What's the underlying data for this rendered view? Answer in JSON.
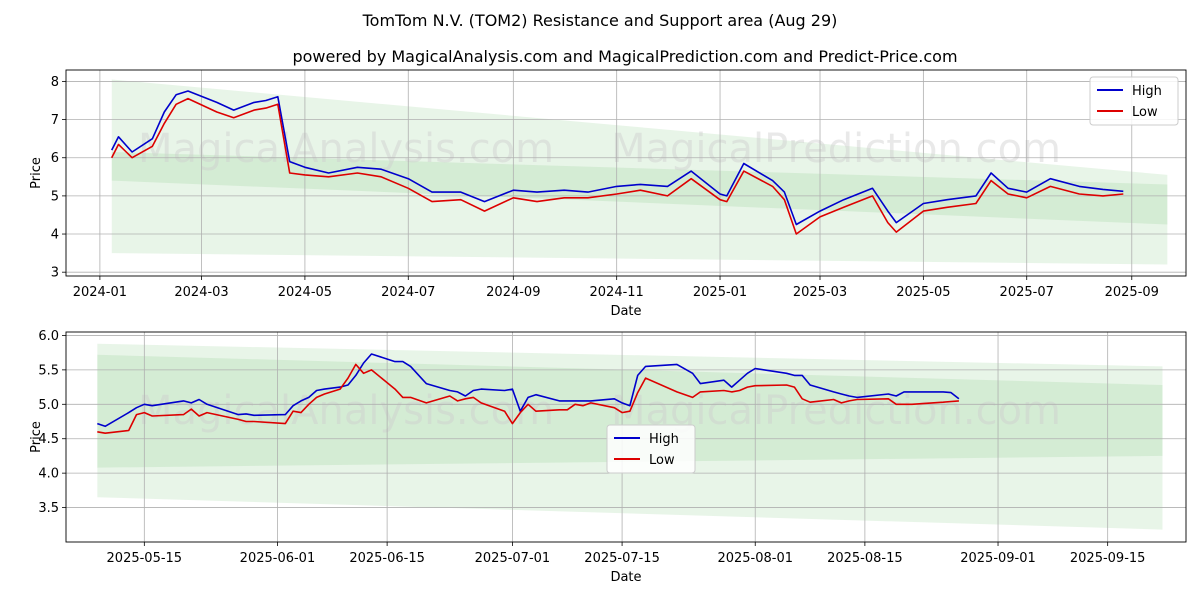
{
  "title": "TomTom N.V. (TOM2) Resistance and Support area (Aug 29)",
  "subtitle": "powered by MagicalAnalysis.com and MagicalPrediction.com and Predict-Price.com",
  "watermarks": [
    "MagicalAnalysis.com",
    "MagicalPrediction.com"
  ],
  "colors": {
    "high": "#0000cc",
    "low": "#dd0000",
    "band": "#6fbf6f",
    "grid": "#b0b0b0"
  },
  "chart_data": [
    {
      "type": "line",
      "xlabel": "Date",
      "ylabel": "Price",
      "x_range": [
        "2023-12-12",
        "2025-10-03"
      ],
      "ylim": [
        2.9,
        8.3
      ],
      "x_ticks": [
        "2024-01",
        "2024-03",
        "2024-05",
        "2024-07",
        "2024-09",
        "2024-11",
        "2025-01",
        "2025-03",
        "2025-05",
        "2025-07",
        "2025-09"
      ],
      "y_ticks": [
        3,
        4,
        5,
        6,
        7,
        8
      ],
      "grid": true,
      "legend_position": "top-right",
      "bands": [
        {
          "x": [
            "2024-01-08",
            "2025-09-22"
          ],
          "upper": [
            8.05,
            5.55
          ],
          "lower": [
            3.5,
            3.2
          ]
        },
        {
          "x": [
            "2024-01-08",
            "2025-09-22"
          ],
          "upper": [
            6.15,
            5.3
          ],
          "lower": [
            5.4,
            4.25
          ]
        }
      ],
      "series": [
        {
          "name": "High",
          "x": [
            "2024-01-08",
            "2024-01-12",
            "2024-01-20",
            "2024-02-01",
            "2024-02-08",
            "2024-02-15",
            "2024-02-22",
            "2024-03-10",
            "2024-03-20",
            "2024-04-01",
            "2024-04-08",
            "2024-04-15",
            "2024-04-22",
            "2024-05-01",
            "2024-05-15",
            "2024-06-01",
            "2024-06-15",
            "2024-07-01",
            "2024-07-15",
            "2024-08-01",
            "2024-08-15",
            "2024-09-01",
            "2024-09-15",
            "2024-10-01",
            "2024-10-15",
            "2024-11-01",
            "2024-11-15",
            "2024-12-01",
            "2024-12-15",
            "2025-01-01",
            "2025-01-05",
            "2025-01-15",
            "2025-02-01",
            "2025-02-08",
            "2025-02-15",
            "2025-03-01",
            "2025-03-15",
            "2025-04-01",
            "2025-04-10",
            "2025-04-15",
            "2025-05-01",
            "2025-05-15",
            "2025-06-01",
            "2025-06-10",
            "2025-06-20",
            "2025-07-01",
            "2025-07-15",
            "2025-08-01",
            "2025-08-15",
            "2025-08-27"
          ],
          "values": [
            6.2,
            6.55,
            6.15,
            6.5,
            7.2,
            7.65,
            7.75,
            7.45,
            7.25,
            7.45,
            7.5,
            7.6,
            5.9,
            5.75,
            5.6,
            5.75,
            5.7,
            5.45,
            5.1,
            5.1,
            4.85,
            5.15,
            5.1,
            5.15,
            5.1,
            5.25,
            5.3,
            5.25,
            5.65,
            5.05,
            5.0,
            5.85,
            5.4,
            5.1,
            4.25,
            4.6,
            4.9,
            5.2,
            4.6,
            4.3,
            4.8,
            4.9,
            5.0,
            5.6,
            5.2,
            5.1,
            5.45,
            5.25,
            5.17,
            5.12
          ]
        },
        {
          "name": "Low",
          "x": [
            "2024-01-08",
            "2024-01-12",
            "2024-01-20",
            "2024-02-01",
            "2024-02-08",
            "2024-02-15",
            "2024-02-22",
            "2024-03-10",
            "2024-03-20",
            "2024-04-01",
            "2024-04-08",
            "2024-04-15",
            "2024-04-22",
            "2024-05-01",
            "2024-05-15",
            "2024-06-01",
            "2024-06-15",
            "2024-07-01",
            "2024-07-15",
            "2024-08-01",
            "2024-08-15",
            "2024-09-01",
            "2024-09-15",
            "2024-10-01",
            "2024-10-15",
            "2024-11-01",
            "2024-11-15",
            "2024-12-01",
            "2024-12-15",
            "2025-01-01",
            "2025-01-05",
            "2025-01-15",
            "2025-02-01",
            "2025-02-08",
            "2025-02-15",
            "2025-03-01",
            "2025-03-15",
            "2025-04-01",
            "2025-04-10",
            "2025-04-15",
            "2025-05-01",
            "2025-05-15",
            "2025-06-01",
            "2025-06-10",
            "2025-06-20",
            "2025-07-01",
            "2025-07-15",
            "2025-08-01",
            "2025-08-15",
            "2025-08-27"
          ],
          "values": [
            6.0,
            6.35,
            6.0,
            6.3,
            6.9,
            7.4,
            7.55,
            7.2,
            7.05,
            7.25,
            7.3,
            7.4,
            5.6,
            5.55,
            5.5,
            5.6,
            5.5,
            5.2,
            4.85,
            4.9,
            4.6,
            4.95,
            4.85,
            4.95,
            4.95,
            5.05,
            5.15,
            5.0,
            5.45,
            4.9,
            4.85,
            5.65,
            5.25,
            4.9,
            4.0,
            4.45,
            4.7,
            5.0,
            4.3,
            4.05,
            4.6,
            4.7,
            4.8,
            5.4,
            5.05,
            4.95,
            5.25,
            5.05,
            5.0,
            5.05
          ]
        }
      ]
    },
    {
      "type": "line",
      "xlabel": "Date",
      "ylabel": "Price",
      "x_range": [
        "2025-05-05",
        "2025-09-25"
      ],
      "ylim": [
        3.0,
        6.05
      ],
      "x_ticks": [
        "2025-05-15",
        "2025-06-01",
        "2025-06-15",
        "2025-07-01",
        "2025-07-15",
        "2025-08-01",
        "2025-08-15",
        "2025-09-01",
        "2025-09-15"
      ],
      "y_ticks": [
        3.5,
        4.0,
        4.5,
        5.0,
        5.5,
        6.0
      ],
      "grid": true,
      "legend_position": "center",
      "bands": [
        {
          "x": [
            "2025-05-09",
            "2025-09-22"
          ],
          "upper": [
            5.88,
            5.55
          ],
          "lower": [
            3.65,
            3.18
          ]
        },
        {
          "x": [
            "2025-05-09",
            "2025-09-22"
          ],
          "upper": [
            5.72,
            5.28
          ],
          "lower": [
            4.08,
            4.25
          ]
        }
      ],
      "series": [
        {
          "name": "High",
          "x": [
            "2025-05-09",
            "2025-05-10",
            "2025-05-13",
            "2025-05-14",
            "2025-05-15",
            "2025-05-16",
            "2025-05-20",
            "2025-05-21",
            "2025-05-22",
            "2025-05-23",
            "2025-05-27",
            "2025-05-28",
            "2025-05-29",
            "2025-06-02",
            "2025-06-03",
            "2025-06-04",
            "2025-06-05",
            "2025-06-06",
            "2025-06-07",
            "2025-06-09",
            "2025-06-10",
            "2025-06-11",
            "2025-06-12",
            "2025-06-13",
            "2025-06-16",
            "2025-06-17",
            "2025-06-18",
            "2025-06-20",
            "2025-06-23",
            "2025-06-24",
            "2025-06-25",
            "2025-06-26",
            "2025-06-27",
            "2025-06-30",
            "2025-07-01",
            "2025-07-02",
            "2025-07-03",
            "2025-07-04",
            "2025-07-07",
            "2025-07-08",
            "2025-07-09",
            "2025-07-10",
            "2025-07-11",
            "2025-07-14",
            "2025-07-15",
            "2025-07-16",
            "2025-07-17",
            "2025-07-18",
            "2025-07-22",
            "2025-07-24",
            "2025-07-25",
            "2025-07-28",
            "2025-07-29",
            "2025-07-30",
            "2025-07-31",
            "2025-08-01",
            "2025-08-05",
            "2025-08-06",
            "2025-08-07",
            "2025-08-08",
            "2025-08-11",
            "2025-08-12",
            "2025-08-13",
            "2025-08-14",
            "2025-08-18",
            "2025-08-19",
            "2025-08-20",
            "2025-08-21",
            "2025-08-25",
            "2025-08-26",
            "2025-08-27"
          ],
          "values": [
            4.72,
            4.68,
            4.88,
            4.95,
            5.0,
            4.98,
            5.05,
            5.02,
            5.07,
            5.0,
            4.85,
            4.86,
            4.84,
            4.85,
            4.98,
            5.05,
            5.1,
            5.2,
            5.22,
            5.25,
            5.28,
            5.42,
            5.6,
            5.73,
            5.62,
            5.62,
            5.55,
            5.3,
            5.2,
            5.18,
            5.12,
            5.2,
            5.22,
            5.2,
            5.22,
            4.9,
            5.1,
            5.14,
            5.05,
            5.05,
            5.05,
            5.05,
            5.05,
            5.08,
            5.02,
            4.98,
            5.42,
            5.55,
            5.58,
            5.45,
            5.3,
            5.35,
            5.25,
            5.35,
            5.45,
            5.52,
            5.45,
            5.42,
            5.42,
            5.28,
            5.18,
            5.15,
            5.12,
            5.1,
            5.15,
            5.12,
            5.18,
            5.18,
            5.18,
            5.17,
            5.08
          ]
        },
        {
          "name": "Low",
          "x": [
            "2025-05-09",
            "2025-05-10",
            "2025-05-13",
            "2025-05-14",
            "2025-05-15",
            "2025-05-16",
            "2025-05-20",
            "2025-05-21",
            "2025-05-22",
            "2025-05-23",
            "2025-05-27",
            "2025-05-28",
            "2025-05-29",
            "2025-06-02",
            "2025-06-03",
            "2025-06-04",
            "2025-06-05",
            "2025-06-06",
            "2025-06-07",
            "2025-06-09",
            "2025-06-10",
            "2025-06-11",
            "2025-06-12",
            "2025-06-13",
            "2025-06-16",
            "2025-06-17",
            "2025-06-18",
            "2025-06-20",
            "2025-06-23",
            "2025-06-24",
            "2025-06-25",
            "2025-06-26",
            "2025-06-27",
            "2025-06-30",
            "2025-07-01",
            "2025-07-02",
            "2025-07-03",
            "2025-07-04",
            "2025-07-07",
            "2025-07-08",
            "2025-07-09",
            "2025-07-10",
            "2025-07-11",
            "2025-07-14",
            "2025-07-15",
            "2025-07-16",
            "2025-07-17",
            "2025-07-18",
            "2025-07-22",
            "2025-07-24",
            "2025-07-25",
            "2025-07-28",
            "2025-07-29",
            "2025-07-30",
            "2025-07-31",
            "2025-08-01",
            "2025-08-05",
            "2025-08-06",
            "2025-08-07",
            "2025-08-08",
            "2025-08-11",
            "2025-08-12",
            "2025-08-13",
            "2025-08-14",
            "2025-08-18",
            "2025-08-19",
            "2025-08-20",
            "2025-08-21",
            "2025-08-25",
            "2025-08-26",
            "2025-08-27"
          ],
          "values": [
            4.6,
            4.58,
            4.62,
            4.85,
            4.88,
            4.83,
            4.85,
            4.93,
            4.83,
            4.88,
            4.78,
            4.75,
            4.75,
            4.72,
            4.9,
            4.88,
            5.0,
            5.1,
            5.15,
            5.22,
            5.38,
            5.58,
            5.45,
            5.5,
            5.22,
            5.1,
            5.1,
            5.02,
            5.12,
            5.05,
            5.08,
            5.1,
            5.02,
            4.9,
            4.72,
            4.88,
            5.0,
            4.9,
            4.92,
            4.92,
            5.0,
            4.98,
            5.02,
            4.95,
            4.88,
            4.9,
            5.17,
            5.38,
            5.18,
            5.1,
            5.18,
            5.2,
            5.18,
            5.2,
            5.25,
            5.27,
            5.28,
            5.25,
            5.08,
            5.03,
            5.07,
            5.02,
            5.05,
            5.07,
            5.08,
            5.0,
            5.0,
            5.0,
            5.03,
            5.04,
            5.05
          ]
        }
      ]
    }
  ]
}
